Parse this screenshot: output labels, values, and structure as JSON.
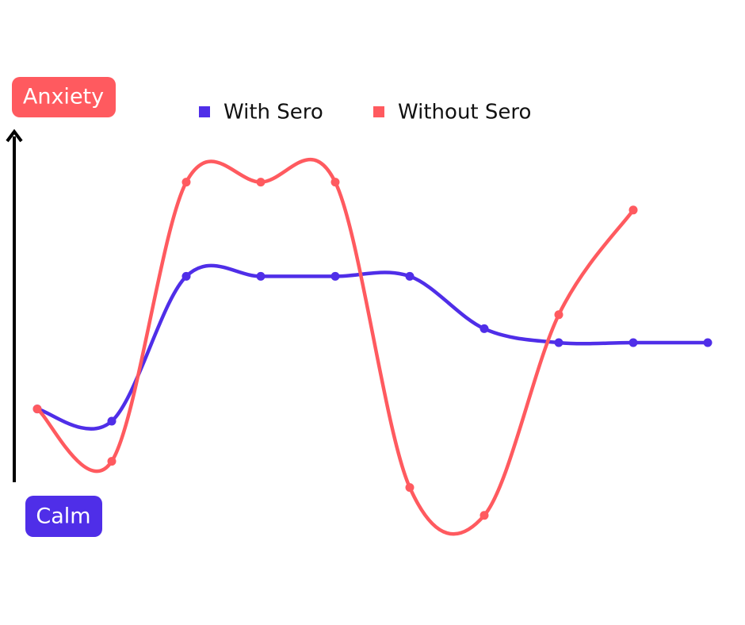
{
  "chart_data": {
    "type": "line",
    "ylabel_top": "Anxiety",
    "ylabel_bottom": "Calm",
    "categories": [
      null,
      null,
      null,
      null,
      null,
      null,
      null,
      null,
      null,
      null
    ],
    "series": [
      {
        "name": "With Sero",
        "color": "#4f2ee8",
        "values": [
          21,
          17.5,
          59,
          59,
          59,
          59,
          44,
          40,
          40,
          40
        ]
      },
      {
        "name": "Without Sero",
        "color": "#ff5a5f",
        "values": [
          21,
          6,
          86,
          86,
          86,
          -1.5,
          -9.5,
          48,
          78,
          null
        ]
      }
    ],
    "ylim": [
      0,
      100
    ],
    "smooth": true,
    "markers": true,
    "legend": "top"
  }
}
